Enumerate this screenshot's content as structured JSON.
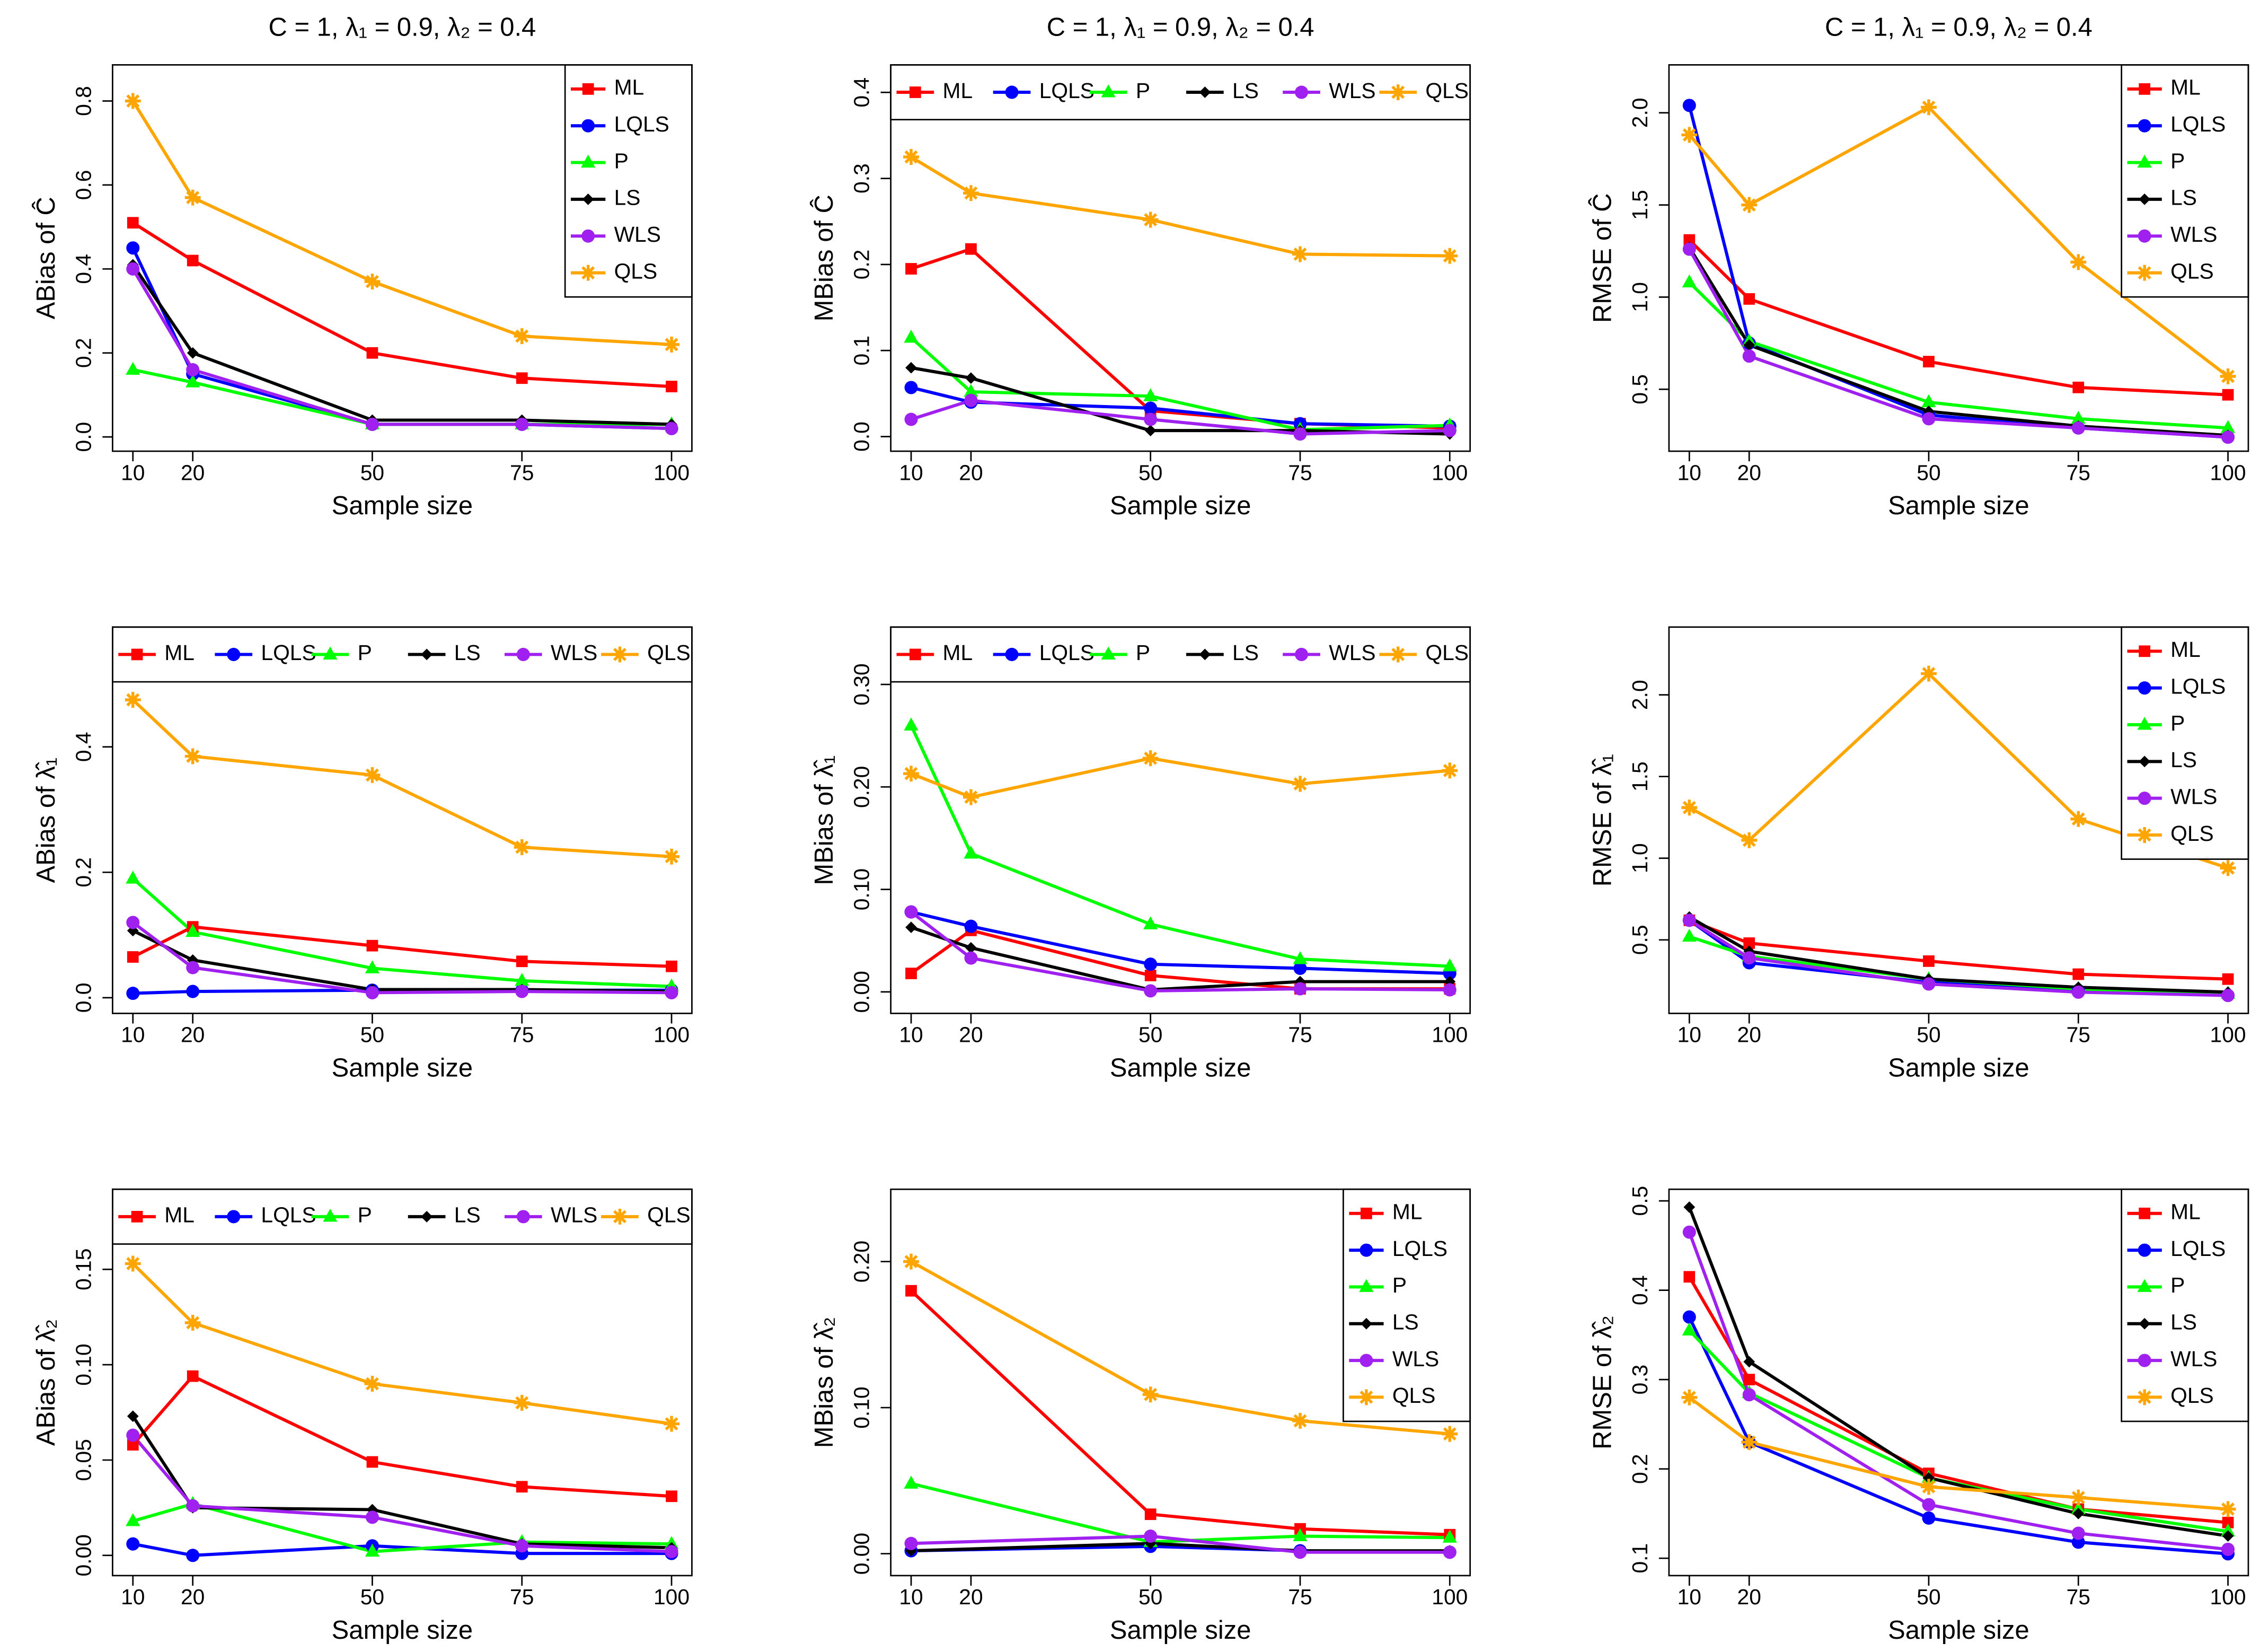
{
  "chart_data": [
    {
      "type": "line",
      "title": "C = 1, λ₁ = 0.9, λ₂ = 0.4",
      "xlabel": "Sample size",
      "ylabel": "ABias of Ĉ",
      "legend": "topright",
      "x": [
        10,
        20,
        50,
        75,
        100
      ],
      "xlim": [
        6.6,
        103.4
      ],
      "xticks": [
        10,
        20,
        50,
        75,
        100
      ],
      "ylim": [
        -0.034,
        0.886
      ],
      "yticks": [
        {
          "value": 0,
          "label": "0.0"
        },
        0.2,
        0.4,
        0.6,
        0.8
      ],
      "series": [
        {
          "name": "ML",
          "color": "#ff0000",
          "marker": "square",
          "values": [
            0.51,
            0.42,
            0.2,
            0.14,
            0.12
          ]
        },
        {
          "name": "LQLS",
          "color": "#0000ff",
          "marker": "circle",
          "values": [
            0.45,
            0.15,
            0.03,
            0.03,
            0.02
          ]
        },
        {
          "name": "P",
          "color": "#00ff00",
          "marker": "triangle",
          "values": [
            0.16,
            0.13,
            0.03,
            0.03,
            0.03
          ]
        },
        {
          "name": "LS",
          "color": "#000000",
          "marker": "diamond",
          "values": [
            0.41,
            0.2,
            0.04,
            0.04,
            0.03
          ]
        },
        {
          "name": "WLS",
          "color": "#a020f0",
          "marker": "circle",
          "values": [
            0.4,
            0.16,
            0.03,
            0.03,
            0.02
          ]
        },
        {
          "name": "QLS",
          "color": "#ffa500",
          "marker": "asterisk",
          "values": [
            0.8,
            0.57,
            0.37,
            0.24,
            0.22
          ]
        }
      ]
    },
    {
      "type": "line",
      "title": "C = 1, λ₁ = 0.9, λ₂ = 0.4",
      "xlabel": "Sample size",
      "ylabel": "MBias of Ĉ",
      "legend": "top",
      "x": [
        10,
        20,
        50,
        75,
        100
      ],
      "xlim": [
        6.6,
        103.4
      ],
      "xticks": [
        10,
        20,
        50,
        75,
        100
      ],
      "ylim": [
        -0.017,
        0.432
      ],
      "yticks": [
        {
          "value": 0,
          "label": "0.0"
        },
        0.1,
        0.2,
        0.3,
        0.4
      ],
      "series": [
        {
          "name": "ML",
          "color": "#ff0000",
          "marker": "square",
          "values": [
            0.195,
            0.218,
            0.03,
            0.015,
            0.01
          ]
        },
        {
          "name": "LQLS",
          "color": "#0000ff",
          "marker": "circle",
          "values": [
            0.057,
            0.04,
            0.033,
            0.015,
            0.012
          ]
        },
        {
          "name": "P",
          "color": "#00ff00",
          "marker": "triangle",
          "values": [
            0.115,
            0.052,
            0.047,
            0.008,
            0.013
          ]
        },
        {
          "name": "LS",
          "color": "#000000",
          "marker": "diamond",
          "values": [
            0.08,
            0.068,
            0.007,
            0.007,
            0.003
          ]
        },
        {
          "name": "WLS",
          "color": "#a020f0",
          "marker": "circle",
          "values": [
            0.02,
            0.042,
            0.02,
            0.003,
            0.007
          ]
        },
        {
          "name": "QLS",
          "color": "#ffa500",
          "marker": "asterisk",
          "values": [
            0.325,
            0.283,
            0.252,
            0.212,
            0.21
          ]
        }
      ]
    },
    {
      "type": "line",
      "title": "C = 1, λ₁ = 0.9, λ₂ = 0.4",
      "xlabel": "Sample size",
      "ylabel": "RMSE of Ĉ",
      "legend": "topright",
      "x": [
        10,
        20,
        50,
        75,
        100
      ],
      "xlim": [
        6.6,
        103.4
      ],
      "xticks": [
        10,
        20,
        50,
        75,
        100
      ],
      "ylim": [
        0.164,
        2.26
      ],
      "yticks": [
        0.5,
        {
          "value": 1,
          "label": "1.0"
        },
        1.5,
        {
          "value": 2,
          "label": "2.0"
        }
      ],
      "series": [
        {
          "name": "ML",
          "color": "#ff0000",
          "marker": "square",
          "values": [
            1.31,
            0.99,
            0.65,
            0.51,
            0.47
          ]
        },
        {
          "name": "LQLS",
          "color": "#0000ff",
          "marker": "circle",
          "values": [
            2.04,
            0.75,
            0.36,
            0.29,
            0.24
          ]
        },
        {
          "name": "P",
          "color": "#00ff00",
          "marker": "triangle",
          "values": [
            1.08,
            0.76,
            0.43,
            0.34,
            0.29
          ]
        },
        {
          "name": "LS",
          "color": "#000000",
          "marker": "diamond",
          "values": [
            1.27,
            0.74,
            0.38,
            0.3,
            0.25
          ]
        },
        {
          "name": "WLS",
          "color": "#a020f0",
          "marker": "circle",
          "values": [
            1.26,
            0.68,
            0.34,
            0.29,
            0.24
          ]
        },
        {
          "name": "QLS",
          "color": "#ffa500",
          "marker": "asterisk",
          "values": [
            1.88,
            1.5,
            2.03,
            1.19,
            0.57
          ]
        }
      ]
    },
    {
      "type": "line",
      "xlabel": "Sample size",
      "ylabel": "ABias of λ̂₁",
      "legend": "top",
      "x": [
        10,
        20,
        50,
        75,
        100
      ],
      "xlim": [
        6.6,
        103.4
      ],
      "xticks": [
        10,
        20,
        50,
        75,
        100
      ],
      "ylim": [
        -0.025,
        0.591
      ],
      "yticks": [
        {
          "value": 0,
          "label": "0.0"
        },
        0.2,
        0.4
      ],
      "series": [
        {
          "name": "ML",
          "color": "#ff0000",
          "marker": "square",
          "values": [
            0.065,
            0.113,
            0.083,
            0.058,
            0.05
          ]
        },
        {
          "name": "LQLS",
          "color": "#0000ff",
          "marker": "circle",
          "values": [
            0.007,
            0.01,
            0.012,
            0.012,
            0.012
          ]
        },
        {
          "name": "P",
          "color": "#00ff00",
          "marker": "triangle",
          "values": [
            0.19,
            0.105,
            0.047,
            0.027,
            0.018
          ]
        },
        {
          "name": "LS",
          "color": "#000000",
          "marker": "diamond",
          "values": [
            0.107,
            0.06,
            0.013,
            0.013,
            0.01
          ]
        },
        {
          "name": "WLS",
          "color": "#a020f0",
          "marker": "circle",
          "values": [
            0.12,
            0.048,
            0.008,
            0.01,
            0.008
          ]
        },
        {
          "name": "QLS",
          "color": "#ffa500",
          "marker": "asterisk",
          "values": [
            0.475,
            0.385,
            0.355,
            0.24,
            0.225
          ]
        }
      ]
    },
    {
      "type": "line",
      "xlabel": "Sample size",
      "ylabel": "MBias of λ̂₁",
      "legend": "top",
      "x": [
        10,
        20,
        50,
        75,
        100
      ],
      "xlim": [
        6.6,
        103.4
      ],
      "xticks": [
        10,
        20,
        50,
        75,
        100
      ],
      "ylim": [
        -0.021,
        0.356
      ],
      "yticks": [
        {
          "value": 0,
          "label": "0.00"
        },
        {
          "value": 0.1,
          "label": "0.10"
        },
        {
          "value": 0.2,
          "label": "0.20"
        },
        {
          "value": 0.3,
          "label": "0.30"
        }
      ],
      "series": [
        {
          "name": "ML",
          "color": "#ff0000",
          "marker": "square",
          "values": [
            0.018,
            0.06,
            0.016,
            0.003,
            0.003
          ]
        },
        {
          "name": "LQLS",
          "color": "#0000ff",
          "marker": "circle",
          "values": [
            0.078,
            0.064,
            0.027,
            0.023,
            0.018
          ]
        },
        {
          "name": "P",
          "color": "#00ff00",
          "marker": "triangle",
          "values": [
            0.26,
            0.135,
            0.066,
            0.032,
            0.025
          ]
        },
        {
          "name": "LS",
          "color": "#000000",
          "marker": "diamond",
          "values": [
            0.063,
            0.043,
            0.002,
            0.01,
            0.01
          ]
        },
        {
          "name": "WLS",
          "color": "#a020f0",
          "marker": "circle",
          "values": [
            0.078,
            0.033,
            0.001,
            0.003,
            0.002
          ]
        },
        {
          "name": "QLS",
          "color": "#ffa500",
          "marker": "asterisk",
          "values": [
            0.213,
            0.19,
            0.228,
            0.203,
            0.216
          ]
        }
      ]
    },
    {
      "type": "line",
      "xlabel": "Sample size",
      "ylabel": "RMSE of λ̂₁",
      "legend": "topright",
      "x": [
        10,
        20,
        50,
        75,
        100
      ],
      "xlim": [
        6.6,
        103.4
      ],
      "xticks": [
        10,
        20,
        50,
        75,
        100
      ],
      "ylim": [
        0.05,
        2.415
      ],
      "yticks": [
        0.5,
        {
          "value": 1,
          "label": "1.0"
        },
        1.5,
        {
          "value": 2,
          "label": "2.0"
        }
      ],
      "series": [
        {
          "name": "ML",
          "color": "#ff0000",
          "marker": "square",
          "values": [
            0.62,
            0.48,
            0.37,
            0.29,
            0.26
          ]
        },
        {
          "name": "LQLS",
          "color": "#0000ff",
          "marker": "circle",
          "values": [
            0.62,
            0.36,
            0.24,
            0.19,
            0.16
          ]
        },
        {
          "name": "P",
          "color": "#00ff00",
          "marker": "triangle",
          "values": [
            0.52,
            0.4,
            0.26,
            0.2,
            0.17
          ]
        },
        {
          "name": "LS",
          "color": "#000000",
          "marker": "diamond",
          "values": [
            0.64,
            0.43,
            0.26,
            0.21,
            0.18
          ]
        },
        {
          "name": "WLS",
          "color": "#a020f0",
          "marker": "circle",
          "values": [
            0.62,
            0.39,
            0.23,
            0.18,
            0.16
          ]
        },
        {
          "name": "QLS",
          "color": "#ffa500",
          "marker": "asterisk",
          "values": [
            1.31,
            1.11,
            2.13,
            1.24,
            0.94
          ]
        }
      ]
    },
    {
      "type": "line",
      "xlabel": "Sample size",
      "ylabel": "ABias of λ̂₂",
      "legend": "top",
      "x": [
        10,
        20,
        50,
        75,
        100
      ],
      "xlim": [
        6.6,
        103.4
      ],
      "xticks": [
        10,
        20,
        50,
        75,
        100
      ],
      "ylim": [
        -0.0106,
        0.192
      ],
      "yticks": [
        {
          "value": 0,
          "label": "0.00"
        },
        0.05,
        {
          "value": 0.1,
          "label": "0.10"
        },
        0.15
      ],
      "series": [
        {
          "name": "ML",
          "color": "#ff0000",
          "marker": "square",
          "values": [
            0.058,
            0.094,
            0.049,
            0.036,
            0.031
          ]
        },
        {
          "name": "LQLS",
          "color": "#0000ff",
          "marker": "circle",
          "values": [
            0.006,
            0.0,
            0.005,
            0.001,
            0.001
          ]
        },
        {
          "name": "P",
          "color": "#00ff00",
          "marker": "triangle",
          "values": [
            0.018,
            0.027,
            0.002,
            0.007,
            0.006
          ]
        },
        {
          "name": "LS",
          "color": "#000000",
          "marker": "diamond",
          "values": [
            0.073,
            0.025,
            0.024,
            0.006,
            0.004
          ]
        },
        {
          "name": "WLS",
          "color": "#a020f0",
          "marker": "circle",
          "values": [
            0.063,
            0.026,
            0.02,
            0.005,
            0.002
          ]
        },
        {
          "name": "QLS",
          "color": "#ffa500",
          "marker": "asterisk",
          "values": [
            0.153,
            0.122,
            0.09,
            0.08,
            0.069
          ]
        }
      ]
    },
    {
      "type": "line",
      "xlabel": "Sample size",
      "ylabel": "MBias of λ̂₂",
      "legend": "topright",
      "x": [
        10,
        50,
        75,
        100
      ],
      "xlim": [
        6.6,
        103.4
      ],
      "xticks": [
        10,
        20,
        50,
        75,
        100
      ],
      "ylim": [
        -0.015,
        0.2495
      ],
      "yticks": [
        {
          "value": 0,
          "label": "0.00"
        },
        {
          "value": 0.1,
          "label": "0.10"
        },
        {
          "value": 0.2,
          "label": "0.20"
        }
      ],
      "series": [
        {
          "name": "ML",
          "color": "#ff0000",
          "marker": "square",
          "values": [
            0.18,
            0.027,
            0.017,
            0.013
          ]
        },
        {
          "name": "LQLS",
          "color": "#0000ff",
          "marker": "circle",
          "values": [
            0.002,
            0.005,
            0.002,
            0.001
          ]
        },
        {
          "name": "P",
          "color": "#00ff00",
          "marker": "triangle",
          "values": [
            0.048,
            0.008,
            0.012,
            0.011
          ]
        },
        {
          "name": "LS",
          "color": "#000000",
          "marker": "diamond",
          "values": [
            0.002,
            0.007,
            0.002,
            0.002
          ]
        },
        {
          "name": "WLS",
          "color": "#a020f0",
          "marker": "circle",
          "values": [
            0.007,
            0.012,
            0.001,
            0.001
          ]
        },
        {
          "name": "QLS",
          "color": "#ffa500",
          "marker": "asterisk",
          "values": [
            0.2,
            0.109,
            0.091,
            0.082
          ]
        }
      ]
    },
    {
      "type": "line",
      "xlabel": "Sample size",
      "ylabel": "RMSE of λ̂₂",
      "legend": "topright",
      "x": [
        10,
        20,
        50,
        75,
        100
      ],
      "xlim": [
        6.6,
        103.4
      ],
      "xticks": [
        10,
        20,
        50,
        75,
        100
      ],
      "ylim": [
        0.0806,
        0.513
      ],
      "yticks": [
        0.1,
        0.2,
        0.3,
        0.4,
        0.5
      ],
      "series": [
        {
          "name": "ML",
          "color": "#ff0000",
          "marker": "square",
          "values": [
            0.415,
            0.3,
            0.195,
            0.155,
            0.14
          ]
        },
        {
          "name": "LQLS",
          "color": "#0000ff",
          "marker": "circle",
          "values": [
            0.37,
            0.23,
            0.145,
            0.118,
            0.105
          ]
        },
        {
          "name": "P",
          "color": "#00ff00",
          "marker": "triangle",
          "values": [
            0.355,
            0.285,
            0.19,
            0.155,
            0.13
          ]
        },
        {
          "name": "LS",
          "color": "#000000",
          "marker": "diamond",
          "values": [
            0.493,
            0.32,
            0.19,
            0.15,
            0.125
          ]
        },
        {
          "name": "WLS",
          "color": "#a020f0",
          "marker": "circle",
          "values": [
            0.465,
            0.283,
            0.16,
            0.128,
            0.11
          ]
        },
        {
          "name": "QLS",
          "color": "#ffa500",
          "marker": "asterisk",
          "values": [
            0.28,
            0.23,
            0.18,
            0.168,
            0.155
          ]
        }
      ]
    }
  ]
}
